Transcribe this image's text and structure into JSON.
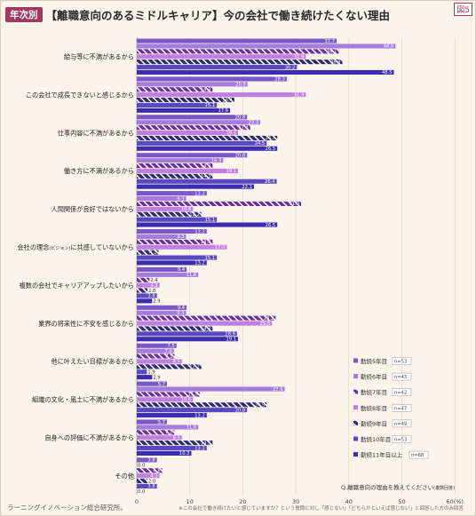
{
  "header": {
    "tag": "年次別",
    "title": "【離職意向のあるミドルキャリア】今の会社で働き続けたくない理由",
    "figure_label": "図5"
  },
  "footer": {
    "source": "ラーニングイノベーション総合研究所。",
    "note": "※この会社で働き続けたいと感じていますか？という質問に対し「感じない」「どちらかといえば感じない」と回答した方のみ回答",
    "question": "Q.離職意向の理由を教えてください",
    "question_note": "(複数回答)"
  },
  "colors": {
    "y5": "#7b58c8",
    "y6": "#a57cde",
    "y7": "#6a2e9f",
    "y8": "#c17fe2",
    "y9": "#2e2a73",
    "y10": "#5a48c0",
    "y11": "#3c2db0"
  },
  "chart_data": {
    "type": "bar",
    "orientation": "horizontal",
    "xlabel": "",
    "x_unit": "(%)",
    "xlim": [
      0,
      60
    ],
    "xticks": [
      "0",
      "10",
      "20",
      "30",
      "40",
      "50",
      "60(%)"
    ],
    "grid": true,
    "legend_position": "bottom-right",
    "categories": [
      "給与等に不満があるから",
      "この会社で成長できないと感じるから",
      "仕事内容に不満があるから",
      "働き方に不満があるから",
      "人間関係が良好ではないから",
      "会社の理念(ビジョン)に共感していないから",
      "複数の会社でキャリアアップしたいから",
      "業界の将来性に不安を感じるから",
      "他に叶えたい目標があるから",
      "組織の文化・風土に不満があるから",
      "自身への評価に不満があるから",
      "その他"
    ],
    "category_labels": [
      {
        "main": "給与等に不満があるから",
        "small": ""
      },
      {
        "main": "この会社で成長できないと感じるから",
        "small": ""
      },
      {
        "main": "仕事内容に不満があるから",
        "small": ""
      },
      {
        "main": "働き方に不満があるから",
        "small": ""
      },
      {
        "main": "人間関係が良好ではないから",
        "small": ""
      },
      {
        "main": "会社の理念",
        "small": "(ビジョン)",
        "rest": "に共感していないから"
      },
      {
        "main": "複数の会社でキャリアアップしたいから",
        "small": ""
      },
      {
        "main": "業界の将来性に不安を感じるから",
        "small": ""
      },
      {
        "main": "他に叶えたい目標があるから",
        "small": ""
      },
      {
        "main": "組織の文化・風土に不満があるから",
        "small": ""
      },
      {
        "main": "自身への評価に不満があるから",
        "small": ""
      },
      {
        "main": "その他",
        "small": ""
      }
    ],
    "series": [
      {
        "name": "勤続5年目",
        "n": "n=53",
        "color_key": "y5",
        "hatch": false,
        "values": [
          37.7,
          28.3,
          20.8,
          20.8,
          13.2,
          13.2,
          9.4,
          9.4,
          7.5,
          5.7,
          5.7,
          3.8
        ]
      },
      {
        "name": "勤続6年目",
        "n": "n=43",
        "color_key": "y6",
        "hatch": false,
        "values": [
          48.8,
          20.9,
          23.3,
          16.3,
          9.3,
          9.3,
          11.6,
          9.3,
          7.0,
          27.9,
          11.6,
          0.0
        ]
      },
      {
        "name": "勤続7年目",
        "n": "n=42",
        "color_key": "y7",
        "hatch": true,
        "values": [
          38.1,
          14.3,
          21.4,
          14.3,
          31.0,
          14.3,
          2.4,
          26.2,
          7.1,
          11.9,
          7.1,
          4.8
        ]
      },
      {
        "name": "勤続8年目",
        "n": "n=47",
        "color_key": "y8",
        "hatch": false,
        "values": [
          31.9,
          31.9,
          19.1,
          19.1,
          10.6,
          17.0,
          4.3,
          25.5,
          8.5,
          10.6,
          8.5,
          4.3
        ]
      },
      {
        "name": "勤続9年目",
        "n": "n=49",
        "color_key": "y9",
        "hatch": true,
        "values": [
          38.8,
          18.4,
          26.5,
          14.3,
          12.2,
          4.1,
          2.0,
          14.3,
          12.2,
          24.5,
          14.3,
          2.0
        ]
      },
      {
        "name": "勤続10年目",
        "n": "n=53",
        "color_key": "y10",
        "hatch": false,
        "values": [
          30.2,
          15.1,
          24.5,
          26.4,
          15.1,
          15.1,
          3.8,
          18.9,
          1.9,
          20.8,
          13.2,
          3.8
        ]
      },
      {
        "name": "勤続11年目以上",
        "n": "n=68",
        "color_key": "y11",
        "hatch": false,
        "values": [
          48.5,
          17.6,
          26.5,
          22.1,
          26.5,
          13.2,
          2.9,
          19.1,
          2.9,
          13.2,
          10.3,
          0.0
        ]
      }
    ],
    "value_labels": [
      [
        "37.7",
        "48.8",
        "38.1",
        "31.9",
        "38.8",
        "30.2",
        "48.5"
      ],
      [
        "28.3",
        "20.9",
        "14.3",
        "31.9",
        "18.4",
        "15.1",
        "17.6"
      ],
      [
        "20.8",
        "23.3",
        "21.4",
        "19.1",
        "26.5",
        "24.5",
        "26.5"
      ],
      [
        "20.8",
        "16.3",
        "14.3",
        "19.1",
        "14.3",
        "26.4",
        "22.1"
      ],
      [
        "13.2",
        "9.3",
        "31.0",
        "10.6",
        "12.2",
        "15.1",
        "26.5"
      ],
      [
        "13.2",
        "9.3",
        "14.3",
        "17.0",
        "4.1",
        "15.1",
        "13.2"
      ],
      [
        "9.4",
        "11.6",
        "2.4",
        "4.3",
        "2.0",
        "3.8",
        "2.9"
      ],
      [
        "9.4",
        "9.3",
        "26.2",
        "25.5",
        "14.3",
        "18.9",
        "19.1"
      ],
      [
        "7.5",
        "7.0",
        "7.1",
        "8.5",
        "12.2",
        "1.9",
        "2.9"
      ],
      [
        "5.7",
        "27.9",
        "11.9",
        "10.6",
        "24.5",
        "20.8",
        "13.2"
      ],
      [
        "5.7",
        "11.6",
        "7.1",
        "8.5",
        "14.3",
        "13.2",
        "10.3"
      ],
      [
        "3.8",
        "0.0",
        "4.8",
        "4.3",
        "2.0",
        "3.8",
        "0.0"
      ]
    ]
  }
}
